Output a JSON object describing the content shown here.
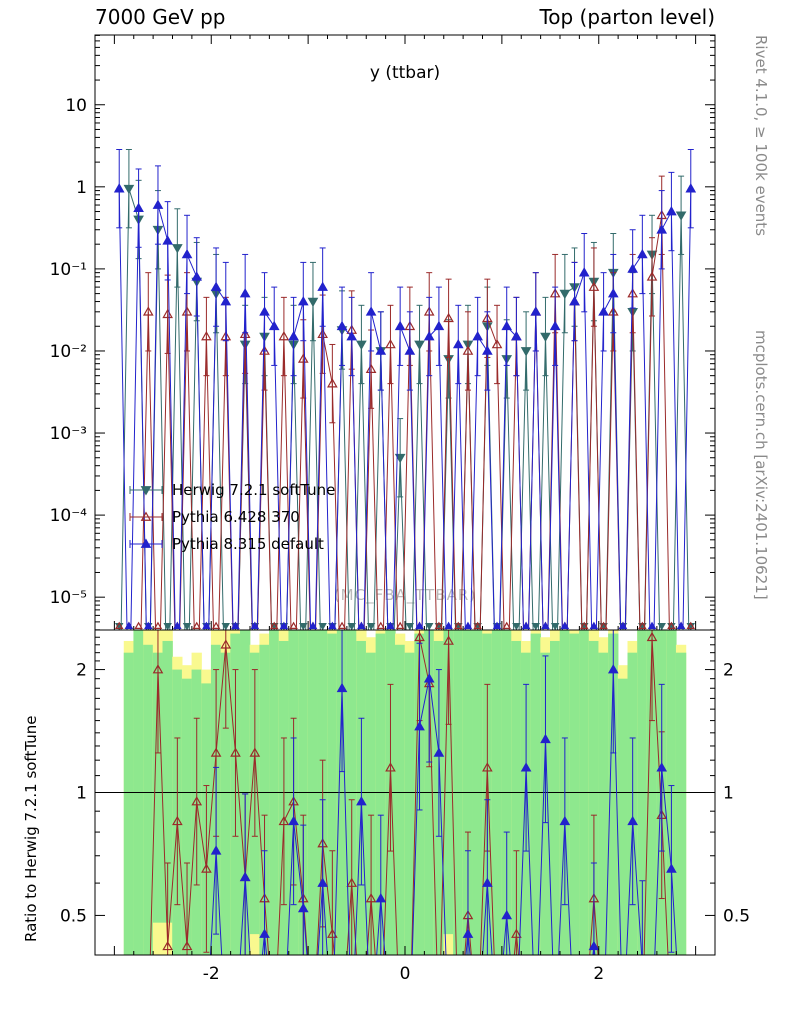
{
  "header": {
    "left": "7000 GeV pp",
    "right": "Top (parton level)"
  },
  "side": {
    "top": "Rivet 4.1.0, ≥ 100k events",
    "bottom": "mcplots.cern.ch [arXiv:2401.10621]"
  },
  "watermark": "(MC_FBA_TTBAR)",
  "ratio_axis_label": "Ratio to Herwig 7.2.1 softTune",
  "chart_data": {
    "type": "line",
    "title": "y (ttbar)",
    "xlabel": "",
    "ylabel": "",
    "x_range": [
      -3.2,
      3.2
    ],
    "main_y_log_range": [
      -5.4,
      1.85
    ],
    "ratio_range": [
      0.4,
      2.5
    ],
    "grid": false,
    "legend_position": "inside-left-bottom",
    "x_ticks": [
      {
        "v": -2,
        "label": "-2"
      },
      {
        "v": 0,
        "label": "0"
      },
      {
        "v": 2,
        "label": "2"
      }
    ],
    "main_y_ticks": [
      {
        "v": 10,
        "label": "10"
      },
      {
        "v": 1,
        "label": "1"
      },
      {
        "v": 0.1,
        "label": "10⁻¹"
      },
      {
        "v": 0.01,
        "label": "10⁻²"
      },
      {
        "v": 0.001,
        "label": "10⁻³"
      },
      {
        "v": 0.0001,
        "label": "10⁻⁴"
      },
      {
        "v": 1e-05,
        "label": "10⁻⁵"
      }
    ],
    "ratio_y_ticks": [
      {
        "v": 2,
        "label": "2"
      },
      {
        "v": 1,
        "label": "1"
      },
      {
        "v": 0.5,
        "label": "0.5"
      }
    ],
    "x": [
      -2.95,
      -2.85,
      -2.75,
      -2.65,
      -2.55,
      -2.45,
      -2.35,
      -2.25,
      -2.15,
      -2.05,
      -1.95,
      -1.85,
      -1.75,
      -1.65,
      -1.55,
      -1.45,
      -1.35,
      -1.25,
      -1.15,
      -1.05,
      -0.95,
      -0.85,
      -0.75,
      -0.65,
      -0.55,
      -0.45,
      -0.35,
      -0.25,
      -0.15,
      -0.05,
      0.05,
      0.15,
      0.25,
      0.35,
      0.45,
      0.55,
      0.65,
      0.75,
      0.85,
      0.95,
      1.05,
      1.15,
      1.25,
      1.35,
      1.45,
      1.55,
      1.65,
      1.75,
      1.85,
      1.95,
      2.05,
      2.15,
      2.25,
      2.35,
      2.45,
      2.55,
      2.65,
      2.75,
      2.85,
      2.95
    ],
    "series": [
      {
        "name": "Herwig 7.2.1 softTune",
        "color": "#336b6b",
        "marker": "triangle-down-filled",
        "values": [
          null,
          0.95,
          0.4,
          null,
          0.3,
          null,
          0.18,
          null,
          0.07,
          null,
          0.05,
          null,
          null,
          0.012,
          null,
          0.015,
          null,
          null,
          0.012,
          null,
          0.04,
          null,
          null,
          0.018,
          null,
          0.012,
          null,
          0.01,
          null,
          0.0005,
          null,
          0.012,
          null,
          null,
          0.008,
          null,
          0.012,
          null,
          0.02,
          null,
          0.008,
          null,
          0.01,
          null,
          0.015,
          null,
          0.05,
          0.06,
          null,
          0.07,
          null,
          0.09,
          null,
          0.03,
          null,
          0.15,
          null,
          null,
          0.45,
          null
        ]
      },
      {
        "name": "Pythia 6.428 370",
        "color": "#9a2a2a",
        "marker": "triangle-up-open",
        "values": [
          null,
          null,
          null,
          0.03,
          null,
          0.028,
          null,
          0.03,
          null,
          0.015,
          null,
          0.015,
          null,
          0.016,
          null,
          0.01,
          null,
          0.015,
          null,
          0.008,
          null,
          0.016,
          0.004,
          null,
          0.018,
          null,
          0.006,
          null,
          0.012,
          null,
          0.02,
          null,
          0.03,
          null,
          0.025,
          null,
          0.01,
          null,
          0.025,
          0.012,
          null,
          0.015,
          null,
          0.03,
          null,
          0.05,
          null,
          0.04,
          null,
          0.06,
          null,
          0.03,
          null,
          0.05,
          null,
          0.08,
          0.45,
          null,
          null,
          null
        ]
      },
      {
        "name": "Pythia 8.315 default",
        "color": "#2222cc",
        "marker": "triangle-up-filled",
        "values": [
          0.95,
          null,
          0.55,
          null,
          0.6,
          0.22,
          null,
          0.15,
          0.08,
          null,
          0.06,
          0.04,
          null,
          0.05,
          null,
          0.03,
          0.02,
          null,
          0.015,
          0.04,
          null,
          0.06,
          null,
          0.02,
          0.015,
          null,
          0.03,
          0.01,
          null,
          0.02,
          0.01,
          null,
          0.015,
          0.02,
          null,
          0.012,
          null,
          0.015,
          0.01,
          null,
          0.02,
          0.015,
          null,
          0.03,
          null,
          0.02,
          null,
          0.04,
          0.09,
          null,
          0.03,
          0.05,
          null,
          0.1,
          0.15,
          null,
          0.3,
          0.5,
          null,
          0.95
        ]
      }
    ],
    "ratio": {
      "reference": "Herwig 7.2.1 softTune",
      "band_colors": {
        "green": "#8ee88e",
        "yellow": "#f9f98f"
      },
      "series": [
        {
          "name": "Pythia 6.428 370",
          "color": "#9a2a2a",
          "marker": "triangle-up-open",
          "values": [
            null,
            null,
            null,
            null,
            2.0,
            0.42,
            0.85,
            0.42,
            0.95,
            0.65,
            1.25,
            2.3,
            1.25,
            0.62,
            1.25,
            0.55,
            null,
            0.85,
            0.95,
            0.55,
            null,
            0.75,
            0.45,
            null,
            0.6,
            null,
            0.55,
            null,
            1.15,
            null,
            null,
            2.4,
            1.85,
            null,
            2.35,
            null,
            0.5,
            null,
            1.15,
            null,
            null,
            0.45,
            null,
            null,
            null,
            null,
            null,
            null,
            null,
            0.55,
            null,
            null,
            null,
            null,
            null,
            2.4,
            0.88,
            null,
            null,
            null
          ]
        },
        {
          "name": "Pythia 8.315 default",
          "color": "#2222cc",
          "marker": "triangle-up-filled",
          "values": [
            null,
            null,
            null,
            null,
            null,
            null,
            null,
            null,
            null,
            null,
            0.72,
            null,
            null,
            0.62,
            null,
            0.45,
            null,
            null,
            0.85,
            0.52,
            null,
            0.6,
            null,
            1.8,
            null,
            0.95,
            null,
            0.55,
            null,
            null,
            null,
            1.45,
            1.9,
            1.25,
            null,
            null,
            0.45,
            null,
            0.6,
            null,
            0.5,
            null,
            1.15,
            null,
            1.35,
            null,
            0.85,
            null,
            null,
            0.42,
            null,
            2.0,
            null,
            0.85,
            0.38,
            null,
            1.15,
            0.65,
            null,
            null
          ]
        }
      ],
      "bands": [
        null,
        [
          0.3,
          2.2,
          0.3,
          2.35
        ],
        [
          0.3,
          2.6,
          0.3,
          2.6
        ],
        [
          0.3,
          2.3,
          0.3,
          2.6
        ],
        [
          0.48,
          2.2,
          0.3,
          2.6
        ],
        [
          0.48,
          2.35,
          0.3,
          2.6
        ],
        [
          0.3,
          2.0,
          0.3,
          2.15
        ],
        [
          0.3,
          1.9,
          0.3,
          2.05
        ],
        [
          0.3,
          2.0,
          0.3,
          2.2
        ],
        [
          0.3,
          1.85,
          0.3,
          2.0
        ],
        [
          0.3,
          2.3,
          0.3,
          2.6
        ],
        [
          0.3,
          2.2,
          0.3,
          2.6
        ],
        [
          0.3,
          2.45,
          0.3,
          2.6
        ],
        [
          0.3,
          2.6,
          0.3,
          2.6
        ],
        [
          0.45,
          2.2,
          0.3,
          2.3
        ],
        [
          0.3,
          2.3,
          0.3,
          2.45
        ],
        [
          0.3,
          2.6,
          0.3,
          2.6
        ],
        [
          0.3,
          2.35,
          0.3,
          2.5
        ],
        [
          0.3,
          2.6,
          0.3,
          2.6
        ],
        [
          0.3,
          2.6,
          0.3,
          2.6
        ],
        [
          0.3,
          2.6,
          0.3,
          2.6
        ],
        [
          0.3,
          2.6,
          0.3,
          2.6
        ],
        [
          0.3,
          2.45,
          0.3,
          2.6
        ],
        [
          0.3,
          2.6,
          0.3,
          2.6
        ],
        [
          0.3,
          2.6,
          0.3,
          2.6
        ],
        [
          0.3,
          2.35,
          0.3,
          2.6
        ],
        [
          0.3,
          2.2,
          0.3,
          2.4
        ],
        [
          0.3,
          2.45,
          0.3,
          2.6
        ],
        [
          0.3,
          2.6,
          0.3,
          2.6
        ],
        [
          0.3,
          2.3,
          0.3,
          2.45
        ],
        [
          0.3,
          2.2,
          0.3,
          2.35
        ],
        [
          0.3,
          2.45,
          0.3,
          2.6
        ],
        [
          0.3,
          2.6,
          0.3,
          2.6
        ],
        [
          0.3,
          2.35,
          0.3,
          2.5
        ],
        [
          0.45,
          2.6,
          0.3,
          2.6
        ],
        [
          0.3,
          2.6,
          0.3,
          2.6
        ],
        [
          0.3,
          2.6,
          0.3,
          2.6
        ],
        [
          0.3,
          2.6,
          0.3,
          2.6
        ],
        [
          0.3,
          2.45,
          0.3,
          2.6
        ],
        [
          0.3,
          2.6,
          0.3,
          2.6
        ],
        [
          0.3,
          2.6,
          0.3,
          2.6
        ],
        [
          0.3,
          2.35,
          0.3,
          2.5
        ],
        [
          0.3,
          2.2,
          0.3,
          2.35
        ],
        [
          0.3,
          2.45,
          0.3,
          2.6
        ],
        [
          0.3,
          2.2,
          0.3,
          2.4
        ],
        [
          0.3,
          2.35,
          0.3,
          2.5
        ],
        [
          0.3,
          2.6,
          0.3,
          2.6
        ],
        [
          0.3,
          2.45,
          0.3,
          2.6
        ],
        [
          0.3,
          2.6,
          0.3,
          2.6
        ],
        [
          0.3,
          2.35,
          0.3,
          2.6
        ],
        [
          0.3,
          2.2,
          0.3,
          2.4
        ],
        [
          0.3,
          2.45,
          0.3,
          2.6
        ],
        [
          0.3,
          1.9,
          0.3,
          2.05
        ],
        [
          0.3,
          2.2,
          0.3,
          2.35
        ],
        [
          0.3,
          2.6,
          0.3,
          2.6
        ],
        [
          0.3,
          2.6,
          0.3,
          2.6
        ],
        [
          0.3,
          2.6,
          0.3,
          2.6
        ],
        [
          0.3,
          2.6,
          0.3,
          2.6
        ],
        [
          0.3,
          2.2,
          0.3,
          2.3
        ],
        null
      ]
    }
  }
}
